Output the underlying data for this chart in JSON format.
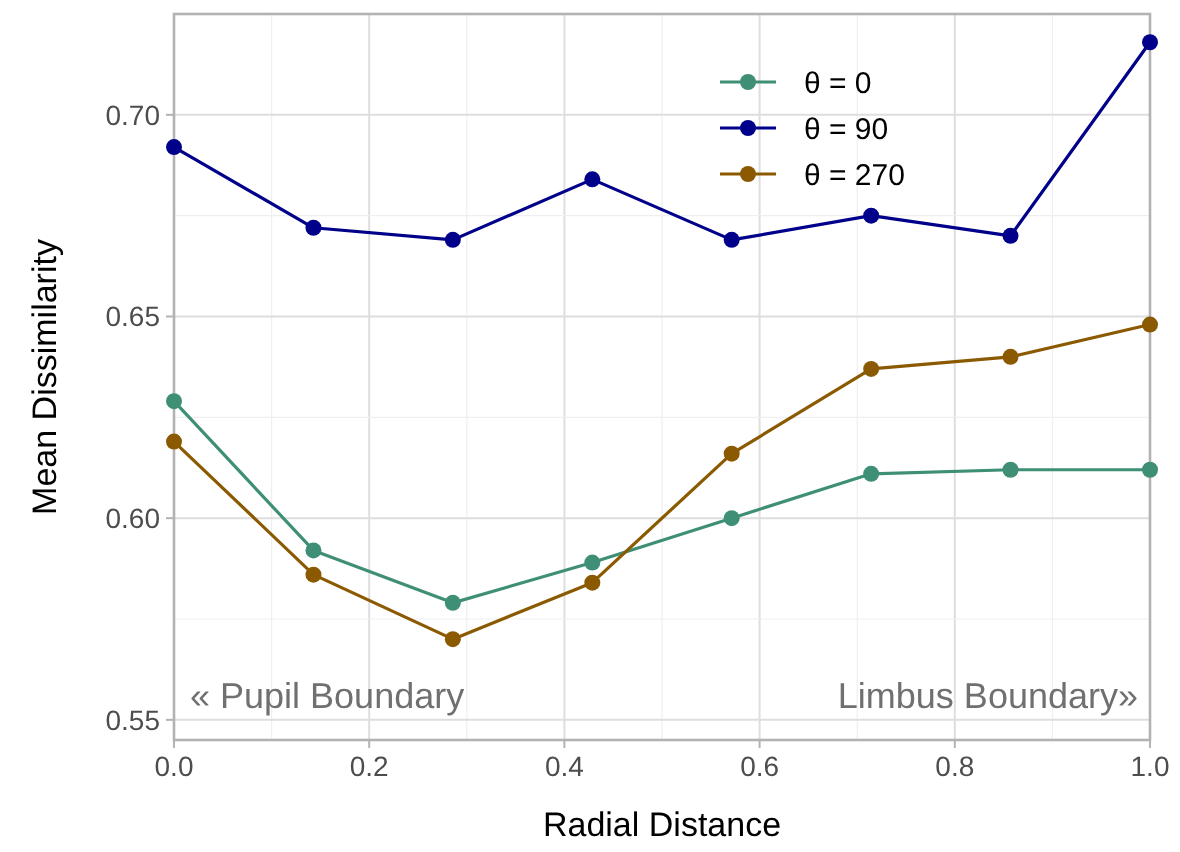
{
  "chart_data": {
    "type": "line",
    "xlabel": "Radial Distance",
    "ylabel": "Mean Dissimilarity",
    "xlim": [
      0,
      1.0
    ],
    "xticks": [
      {
        "value": 0,
        "label": "0.0"
      },
      {
        "value": 0.1,
        "label": null
      },
      {
        "value": 0.2,
        "label": "0.2"
      },
      {
        "value": 0.3,
        "label": null
      },
      {
        "value": 0.4,
        "label": "0.4"
      },
      {
        "value": 0.5,
        "label": null
      },
      {
        "value": 0.6,
        "label": "0.6"
      },
      {
        "value": 0.7,
        "label": null
      },
      {
        "value": 0.8,
        "label": "0.8"
      },
      {
        "value": 0.9,
        "label": null
      },
      {
        "value": 1.0,
        "label": "1.0"
      }
    ],
    "ylim": [
      0.545,
      0.725
    ],
    "yticks": [
      {
        "value": 0.55,
        "label": "0.55"
      },
      {
        "value": 0.575,
        "label": null
      },
      {
        "value": 0.6,
        "label": "0.60"
      },
      {
        "value": 0.625,
        "label": null
      },
      {
        "value": 0.65,
        "label": "0.65"
      },
      {
        "value": 0.675,
        "label": null
      },
      {
        "value": 0.7,
        "label": "0.70"
      }
    ],
    "x": [
      0,
      0.1429,
      0.2857,
      0.4286,
      0.5714,
      0.7143,
      0.8571,
      1.0
    ],
    "series": [
      {
        "name": "θ = 0",
        "color": "#3f8f76",
        "values": [
          0.629,
          0.592,
          0.579,
          0.589,
          0.6,
          0.611,
          0.612,
          0.612
        ]
      },
      {
        "name": "θ = 90",
        "color": "#00008b",
        "values": [
          0.692,
          0.672,
          0.669,
          0.684,
          0.669,
          0.675,
          0.67,
          0.718
        ]
      },
      {
        "name": "θ = 270",
        "color": "#8b5a00",
        "values": [
          0.619,
          0.586,
          0.57,
          0.584,
          0.616,
          0.637,
          0.64,
          0.648
        ]
      }
    ],
    "annotations": [
      "« Pupil Boundary",
      "Limbus Boundary»"
    ],
    "grid": true,
    "legend": "top right",
    "marker": "circle",
    "line_style": "solid"
  }
}
